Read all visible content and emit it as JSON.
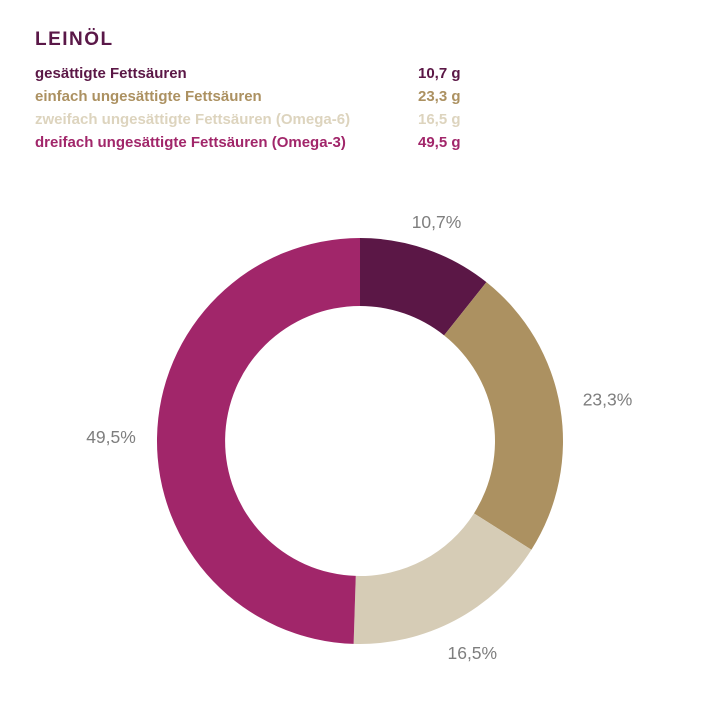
{
  "title": "LEINÖL",
  "theme": {
    "background": "#ffffff",
    "title_color": "#5a1848",
    "percent_label_color": "#7e7e7e"
  },
  "legend": {
    "rows": [
      {
        "label": "gesättigte Fettsäuren",
        "value": "10,7 g",
        "color": "#5b1746"
      },
      {
        "label": "einfach ungesättigte Fettsäuren",
        "value": "23,3 g",
        "color": "#ac9161"
      },
      {
        "label": "zweifach ungesättigte Fettsäuren (Omega-6)",
        "value": "16,5 g",
        "color": "#ddd4be"
      },
      {
        "label": "dreifach ungesättigte Fettsäuren (Omega-3)",
        "value": "49,5 g",
        "color": "#a1266a"
      }
    ]
  },
  "chart_data": {
    "type": "pie",
    "subtype": "donut",
    "title": "LEINÖL",
    "unit": "g",
    "categories": [
      "gesättigte Fettsäuren",
      "einfach ungesättigte Fettsäuren",
      "zweifach ungesättigte Fettsäuren (Omega-6)",
      "dreifach ungesättigte Fettsäuren (Omega-3)"
    ],
    "values": [
      10.7,
      23.3,
      16.5,
      49.5
    ],
    "percent_labels": [
      "10,7%",
      "23,3%",
      "16,5%",
      "49,5%"
    ],
    "colors": [
      "#5b1746",
      "#ac9161",
      "#d6ccb6",
      "#a1266a"
    ],
    "start_angle_deg": 0,
    "direction": "clockwise",
    "center": [
      360,
      441
    ],
    "outer_radius": 203,
    "inner_radius": 135,
    "label_radius": [
      232,
      251,
      240,
      249
    ],
    "label_color": "#7e7e7e",
    "legend_position": "top-left",
    "grid": false
  }
}
